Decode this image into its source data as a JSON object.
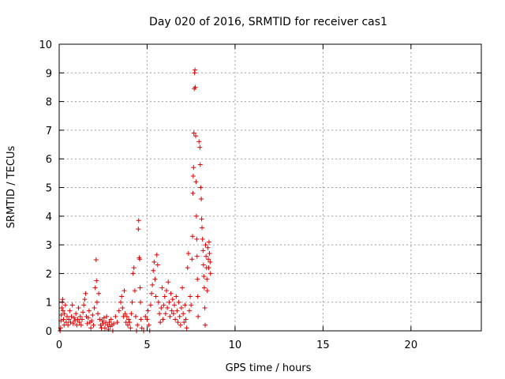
{
  "chart_data": {
    "type": "scatter",
    "title": "Day 020 of 2016, SRMTID for receiver cas1",
    "xlabel": "GPS time / hours",
    "ylabel": "SRMTID / TECUs",
    "xlim": [
      0,
      24
    ],
    "ylim": [
      0,
      10
    ],
    "xticks": [
      0,
      5,
      10,
      15,
      20
    ],
    "yticks": [
      0,
      1,
      2,
      3,
      4,
      5,
      6,
      7,
      8,
      9,
      10
    ],
    "grid": true,
    "marker": "plus",
    "color": "#e00000",
    "series": [
      {
        "name": "SRMTID",
        "points": [
          [
            0.05,
            0.0
          ],
          [
            0.08,
            0.1
          ],
          [
            0.1,
            0.35
          ],
          [
            0.12,
            0.55
          ],
          [
            0.15,
            0.8
          ],
          [
            0.18,
            1.0
          ],
          [
            0.2,
            1.1
          ],
          [
            0.22,
            0.7
          ],
          [
            0.25,
            0.4
          ],
          [
            0.28,
            0.2
          ],
          [
            0.3,
            0.6
          ],
          [
            0.35,
            0.9
          ],
          [
            0.4,
            0.3
          ],
          [
            0.45,
            0.5
          ],
          [
            0.5,
            0.2
          ],
          [
            0.55,
            0.4
          ],
          [
            0.6,
            0.7
          ],
          [
            0.65,
            0.3
          ],
          [
            0.7,
            0.5
          ],
          [
            0.75,
            0.9
          ],
          [
            0.8,
            0.25
          ],
          [
            0.85,
            0.45
          ],
          [
            0.9,
            0.35
          ],
          [
            0.95,
            0.6
          ],
          [
            1.0,
            0.2
          ],
          [
            1.05,
            0.4
          ],
          [
            1.1,
            0.8
          ],
          [
            1.15,
            0.3
          ],
          [
            1.2,
            0.5
          ],
          [
            1.25,
            0.2
          ],
          [
            1.3,
            0.4
          ],
          [
            1.35,
            0.65
          ],
          [
            1.4,
            0.9
          ],
          [
            1.45,
            1.1
          ],
          [
            1.5,
            1.3
          ],
          [
            1.55,
            0.5
          ],
          [
            1.6,
            0.25
          ],
          [
            1.65,
            0.45
          ],
          [
            1.7,
            0.7
          ],
          [
            1.75,
            0.3
          ],
          [
            1.8,
            0.1
          ],
          [
            1.85,
            0.35
          ],
          [
            1.9,
            0.55
          ],
          [
            1.95,
            0.2
          ],
          [
            2.0,
            0.8
          ],
          [
            2.05,
            1.5
          ],
          [
            2.1,
            2.48
          ],
          [
            2.12,
            1.75
          ],
          [
            2.15,
            1.0
          ],
          [
            2.2,
            0.6
          ],
          [
            2.25,
            1.3
          ],
          [
            2.3,
            0.4
          ],
          [
            2.35,
            0.2
          ],
          [
            2.4,
            0.1
          ],
          [
            2.45,
            0.35
          ],
          [
            2.5,
            0.25
          ],
          [
            2.55,
            0.45
          ],
          [
            2.6,
            0.1
          ],
          [
            2.65,
            0.3
          ],
          [
            2.7,
            0.5
          ],
          [
            2.75,
            0.2
          ],
          [
            2.8,
            0.05
          ],
          [
            2.85,
            0.3
          ],
          [
            2.9,
            0.15
          ],
          [
            2.95,
            0.4
          ],
          [
            3.0,
            0.2
          ],
          [
            3.05,
            0.0
          ],
          [
            3.1,
            0.25
          ],
          [
            3.2,
            0.5
          ],
          [
            3.3,
            0.3
          ],
          [
            3.4,
            0.7
          ],
          [
            3.5,
            1.0
          ],
          [
            3.55,
            1.2
          ],
          [
            3.6,
            0.8
          ],
          [
            3.65,
            0.5
          ],
          [
            3.7,
            1.4
          ],
          [
            3.75,
            0.6
          ],
          [
            3.8,
            0.3
          ],
          [
            3.85,
            0.5
          ],
          [
            3.9,
            0.2
          ],
          [
            3.95,
            0.4
          ],
          [
            4.0,
            0.3
          ],
          [
            4.05,
            0.1
          ],
          [
            4.1,
            0.6
          ],
          [
            4.15,
            1.0
          ],
          [
            4.2,
            2.0
          ],
          [
            4.25,
            2.2
          ],
          [
            4.3,
            1.4
          ],
          [
            4.35,
            0.5
          ],
          [
            4.4,
            0.0
          ],
          [
            4.45,
            0.2
          ],
          [
            4.5,
            3.55
          ],
          [
            4.52,
            3.85
          ],
          [
            4.55,
            2.55
          ],
          [
            4.58,
            2.5
          ],
          [
            4.6,
            1.5
          ],
          [
            4.62,
            1.0
          ],
          [
            4.65,
            0.4
          ],
          [
            4.7,
            0.1
          ],
          [
            4.8,
            0.0
          ],
          [
            4.9,
            0.5
          ],
          [
            5.0,
            0.4
          ],
          [
            5.05,
            0.7
          ],
          [
            5.1,
            0.2
          ],
          [
            5.15,
            0.0
          ],
          [
            5.2,
            0.9
          ],
          [
            5.25,
            1.3
          ],
          [
            5.3,
            1.6
          ],
          [
            5.35,
            2.1
          ],
          [
            5.4,
            2.4
          ],
          [
            5.45,
            1.8
          ],
          [
            5.5,
            1.2
          ],
          [
            5.55,
            2.65
          ],
          [
            5.6,
            2.3
          ],
          [
            5.65,
            1.0
          ],
          [
            5.7,
            0.6
          ],
          [
            5.75,
            0.3
          ],
          [
            5.8,
            0.8
          ],
          [
            5.85,
            1.5
          ],
          [
            5.9,
            0.4
          ],
          [
            5.95,
            0.9
          ],
          [
            6.0,
            1.2
          ],
          [
            6.05,
            0.6
          ],
          [
            6.1,
            1.4
          ],
          [
            6.15,
            0.8
          ],
          [
            6.2,
            1.7
          ],
          [
            6.25,
            1.0
          ],
          [
            6.3,
            0.5
          ],
          [
            6.35,
            1.3
          ],
          [
            6.4,
            0.7
          ],
          [
            6.45,
            1.1
          ],
          [
            6.5,
            0.6
          ],
          [
            6.55,
            0.9
          ],
          [
            6.6,
            0.4
          ],
          [
            6.65,
            1.2
          ],
          [
            6.7,
            0.7
          ],
          [
            6.75,
            0.3
          ],
          [
            6.8,
            1.0
          ],
          [
            6.85,
            0.5
          ],
          [
            6.9,
            0.2
          ],
          [
            6.95,
            0.8
          ],
          [
            7.0,
            1.5
          ],
          [
            7.05,
            0.6
          ],
          [
            7.1,
            0.3
          ],
          [
            7.15,
            0.9
          ],
          [
            7.2,
            0.4
          ],
          [
            7.25,
            0.1
          ],
          [
            7.3,
            2.2
          ],
          [
            7.35,
            2.7
          ],
          [
            7.4,
            0.7
          ],
          [
            7.45,
            1.2
          ],
          [
            7.5,
            0.9
          ],
          [
            7.55,
            2.5
          ],
          [
            7.58,
            3.3
          ],
          [
            7.6,
            4.8
          ],
          [
            7.62,
            5.4
          ],
          [
            7.64,
            5.7
          ],
          [
            7.66,
            6.9
          ],
          [
            7.68,
            8.45
          ],
          [
            7.7,
            9.0
          ],
          [
            7.72,
            9.1
          ],
          [
            7.74,
            8.5
          ],
          [
            7.76,
            6.8
          ],
          [
            7.78,
            5.2
          ],
          [
            7.8,
            4.0
          ],
          [
            7.82,
            3.2
          ],
          [
            7.84,
            2.6
          ],
          [
            7.86,
            1.8
          ],
          [
            7.88,
            1.2
          ],
          [
            7.9,
            0.5
          ],
          [
            7.95,
            6.6
          ],
          [
            8.0,
            6.4
          ],
          [
            8.02,
            5.8
          ],
          [
            8.05,
            5.0
          ],
          [
            8.08,
            4.6
          ],
          [
            8.1,
            3.9
          ],
          [
            8.12,
            3.6
          ],
          [
            8.15,
            3.2
          ],
          [
            8.18,
            2.8
          ],
          [
            8.2,
            2.3
          ],
          [
            8.22,
            1.9
          ],
          [
            8.25,
            1.5
          ],
          [
            8.28,
            0.8
          ],
          [
            8.3,
            0.2
          ],
          [
            8.32,
            3.0
          ],
          [
            8.35,
            2.6
          ],
          [
            8.38,
            2.2
          ],
          [
            8.4,
            1.8
          ],
          [
            8.42,
            1.4
          ],
          [
            8.45,
            2.9
          ],
          [
            8.48,
            2.5
          ],
          [
            8.5,
            2.2
          ],
          [
            8.52,
            3.1
          ],
          [
            8.55,
            2.7
          ],
          [
            8.58,
            2.4
          ],
          [
            8.6,
            2.0
          ]
        ]
      }
    ]
  }
}
